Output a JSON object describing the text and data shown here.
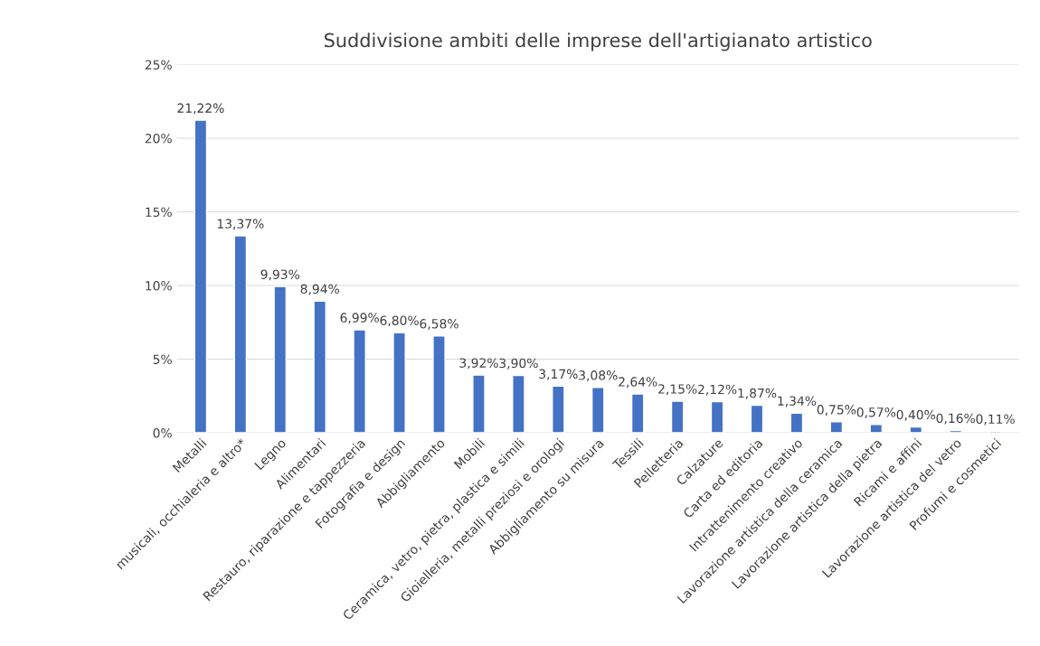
{
  "chart_data": {
    "type": "bar",
    "title": "Suddivisione ambiti delle imprese dell'artigianato artistico",
    "categories": [
      "Metalli",
      "musicali, occhialeria e altro*",
      "Legno",
      "Alimentari",
      "Restauro, riparazione e tappezzeria",
      "Fotografia e design",
      "Abbigliamento",
      "Mobili",
      "Ceramica, vetro, pietra, plastica e simili",
      "Gioielleria, metalli preziosi e orologi",
      "Abbigliamento su misura",
      "Tessili",
      "Pelletteria",
      "Calzature",
      "Carta ed editoria",
      "Intrattenimento creativo",
      "Lavorazione artistica della ceramica",
      "Lavorazione artistica della pietra",
      "Ricami e affini",
      "Lavorazione artistica del vetro",
      "Profumi e cosmetici"
    ],
    "values": [
      21.22,
      13.37,
      9.93,
      8.94,
      6.99,
      6.8,
      6.58,
      3.92,
      3.9,
      3.17,
      3.08,
      2.64,
      2.15,
      2.12,
      1.87,
      1.34,
      0.75,
      0.57,
      0.4,
      0.16,
      0.11
    ],
    "value_labels": [
      "21,22%",
      "13,37%",
      "9,93%",
      "8,94%",
      "6,99%",
      "6,80%",
      "6,58%",
      "3,92%",
      "3,90%",
      "3,17%",
      "3,08%",
      "2,64%",
      "2,15%",
      "2,12%",
      "1,87%",
      "1,34%",
      "0,75%",
      "0,57%",
      "0,40%",
      "0,16%",
      "0,11%"
    ],
    "color": "#4472c4",
    "ylim": [
      0,
      25
    ],
    "yticks": [
      {
        "value": 0,
        "label": "0%"
      },
      {
        "value": 5,
        "label": "5%"
      },
      {
        "value": 10,
        "label": "10%"
      },
      {
        "value": 15,
        "label": "15%"
      },
      {
        "value": 20,
        "label": "20%"
      },
      {
        "value": 25,
        "label": "25%"
      }
    ],
    "grid": "y"
  }
}
